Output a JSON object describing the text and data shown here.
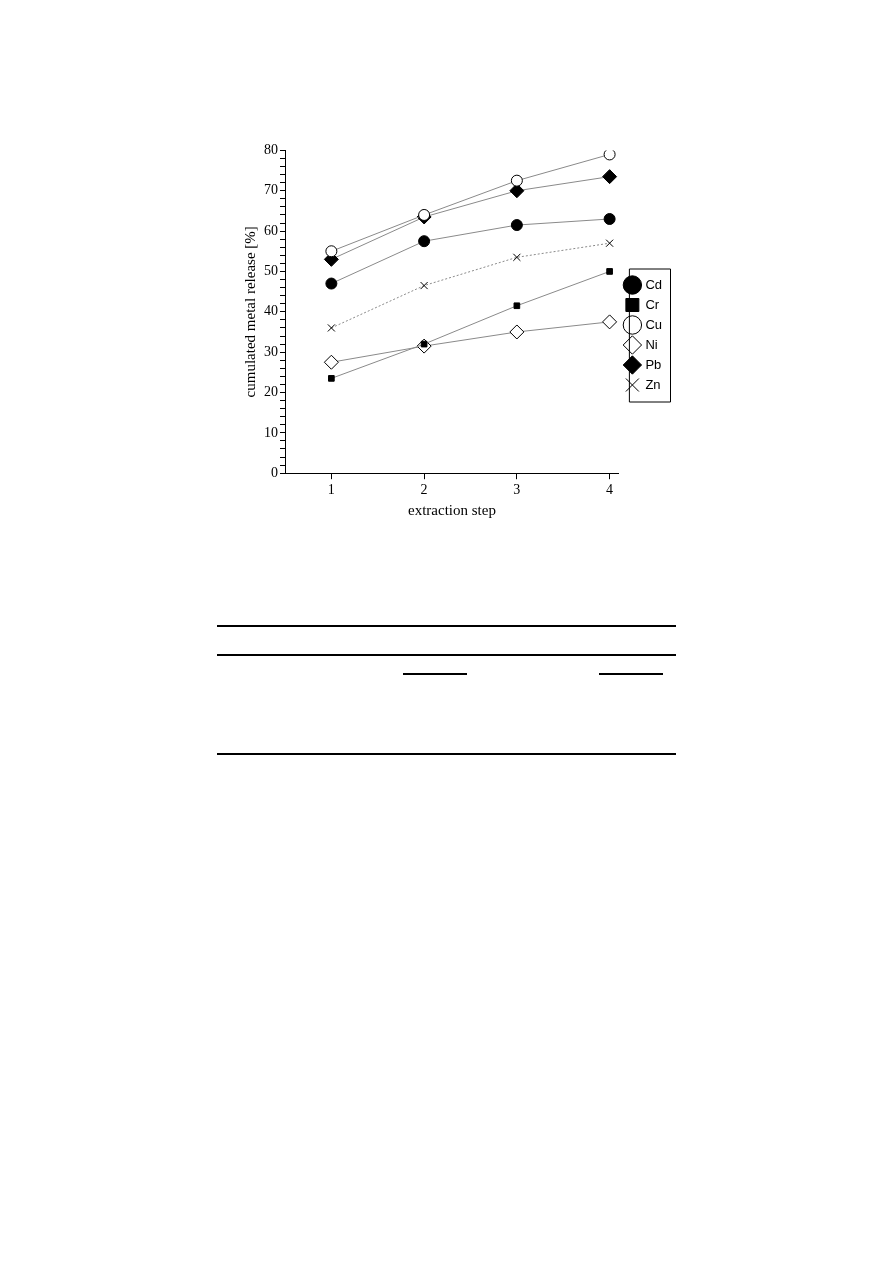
{
  "chart_data": {
    "type": "line",
    "xlabel": "extraction step",
    "ylabel": "cumulated metal release [%]",
    "x": [
      1,
      2,
      3,
      4
    ],
    "series": [
      {
        "name": "Cd",
        "color": "#000000",
        "marker": "circle",
        "values": [
          47,
          57.5,
          61.5,
          63
        ]
      },
      {
        "name": "Cr",
        "color": "#000000",
        "marker": "square",
        "values": [
          23.5,
          32,
          41.5,
          50
        ]
      },
      {
        "name": "Cu",
        "color": "#ffffff",
        "marker": "circle",
        "values": [
          55,
          64,
          72.5,
          79
        ]
      },
      {
        "name": "Ni",
        "color": "#ffffff",
        "marker": "diamond",
        "values": [
          27.5,
          31.5,
          35,
          37.5
        ]
      },
      {
        "name": "Pb",
        "color": "#000000",
        "marker": "diamond",
        "values": [
          53,
          63.5,
          70,
          73.5
        ]
      },
      {
        "name": "Zn",
        "color": "#000000",
        "marker": "cross",
        "line_style": "dotted",
        "values": [
          36,
          46.5,
          53.5,
          57
        ]
      }
    ],
    "xlim": [
      0.5,
      4.1
    ],
    "xticks": [
      1,
      2,
      3,
      4
    ],
    "ylim": [
      0,
      80
    ],
    "yticks": [
      0,
      {
        "value": 2,
        "label": null
      },
      {
        "value": 4,
        "label": null
      },
      {
        "value": 6,
        "label": null
      },
      {
        "value": 8,
        "label": null
      },
      10,
      {
        "value": 12,
        "label": null
      },
      {
        "value": 14,
        "label": null
      },
      {
        "value": 16,
        "label": null
      },
      {
        "value": 18,
        "label": null
      },
      20,
      {
        "value": 22,
        "label": null
      },
      {
        "value": 24,
        "label": null
      },
      {
        "value": 26,
        "label": null
      },
      {
        "value": 28,
        "label": null
      },
      30,
      {
        "value": 32,
        "label": null
      },
      {
        "value": 34,
        "label": null
      },
      {
        "value": 36,
        "label": null
      },
      {
        "value": 38,
        "label": null
      },
      40,
      {
        "value": 42,
        "label": null
      },
      {
        "value": 44,
        "label": null
      },
      {
        "value": 46,
        "label": null
      },
      {
        "value": 48,
        "label": null
      },
      50,
      {
        "value": 52,
        "label": null
      },
      {
        "value": 54,
        "label": null
      },
      {
        "value": 56,
        "label": null
      },
      {
        "value": 58,
        "label": null
      },
      60,
      {
        "value": 62,
        "label": null
      },
      {
        "value": 64,
        "label": null
      },
      {
        "value": 66,
        "label": null
      },
      {
        "value": 68,
        "label": null
      },
      70,
      {
        "value": 72,
        "label": null
      },
      {
        "value": 74,
        "label": null
      },
      {
        "value": 76,
        "label": null
      },
      {
        "value": 78,
        "label": null
      },
      80
    ],
    "grid": false,
    "legend": "right"
  }
}
